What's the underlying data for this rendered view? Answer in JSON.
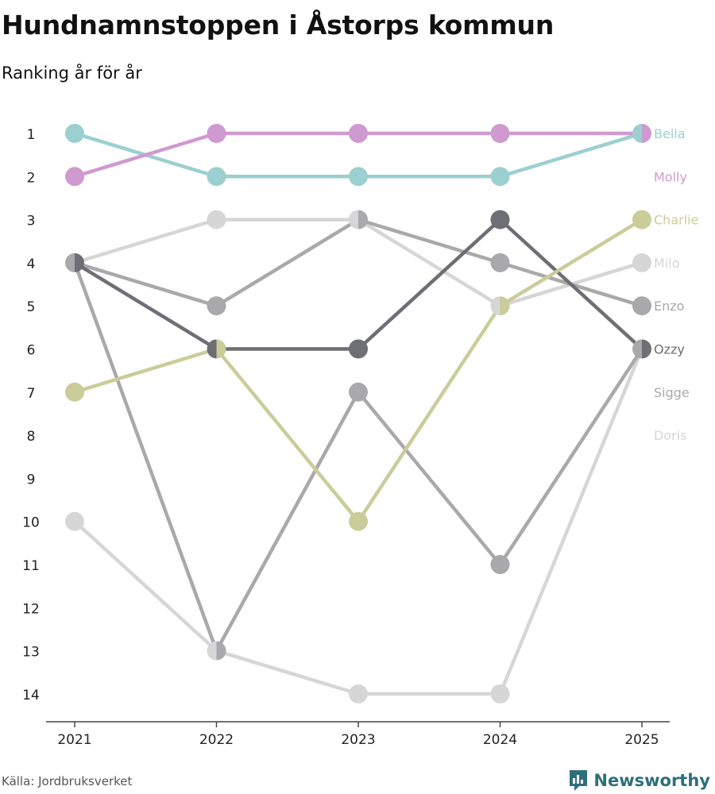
{
  "header": {
    "title": "Hundnamnstoppen i Åstorps kommun",
    "subtitle": "Ranking år för år"
  },
  "footer": {
    "source": "Källa: Jordbruksverket",
    "brand": "Newsworthy",
    "brand_icon": "bar-chart-speech-bubble-icon"
  },
  "colors": {
    "Bella": "#9ccfd0",
    "Molly": "#cf9ad0",
    "Charlie": "#cacc9a",
    "Milo": "#d6d6d6",
    "Enzo": "#a9a9ab",
    "Ozzy": "#6e6e75",
    "Sigge": "#a9a9ab",
    "Doris": "#d6d6d6",
    "axis": "#444444",
    "brand": "#2f6f7a"
  },
  "chart_data": {
    "type": "line",
    "subtype": "bump",
    "title": "Hundnamnstoppen i Åstorps kommun",
    "subtitle": "Ranking år för år",
    "xlabel": "",
    "ylabel": "",
    "x": [
      "2021",
      "2022",
      "2023",
      "2024",
      "2025"
    ],
    "y_ticks": [
      1,
      2,
      3,
      4,
      5,
      6,
      7,
      8,
      9,
      10,
      11,
      12,
      13,
      14
    ],
    "ylim": [
      14,
      1
    ],
    "y_reversed": true,
    "legend": "right end labels",
    "series": [
      {
        "name": "Doris",
        "values": [
          10,
          13,
          14,
          14,
          6
        ]
      },
      {
        "name": "Milo",
        "values": [
          4,
          3,
          3,
          5,
          4
        ]
      },
      {
        "name": "Sigge",
        "values": [
          4,
          13,
          7,
          11,
          6
        ]
      },
      {
        "name": "Enzo",
        "values": [
          4,
          5,
          3,
          4,
          5
        ]
      },
      {
        "name": "Ozzy",
        "values": [
          4,
          6,
          6,
          3,
          6
        ]
      },
      {
        "name": "Charlie",
        "values": [
          7,
          6,
          10,
          5,
          3
        ]
      },
      {
        "name": "Bella",
        "values": [
          1,
          2,
          2,
          2,
          1
        ]
      },
      {
        "name": "Molly",
        "values": [
          2,
          1,
          1,
          1,
          1
        ]
      }
    ],
    "end_labels": [
      "Bella",
      "Molly",
      "Charlie",
      "Milo",
      "Enzo",
      "Ozzy",
      "Sigge",
      "Doris"
    ]
  }
}
